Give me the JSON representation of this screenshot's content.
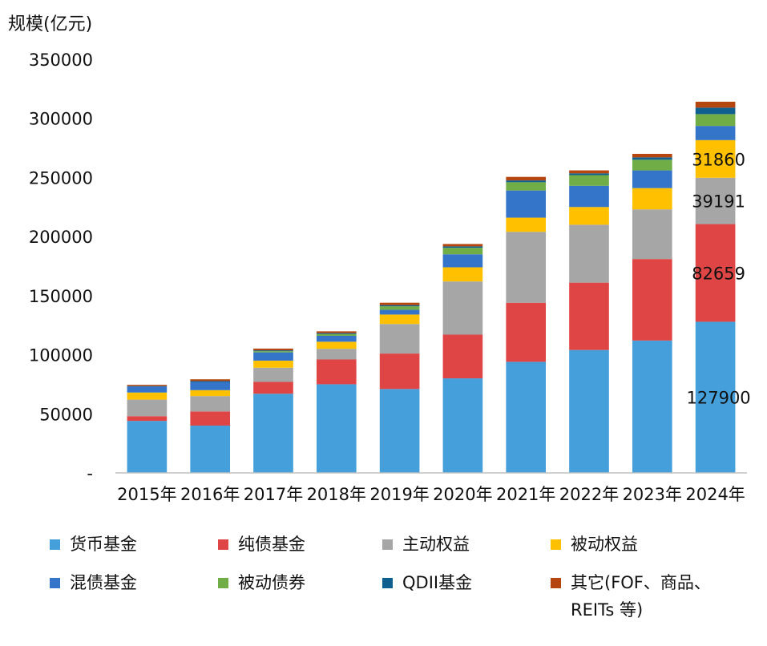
{
  "chart_data": {
    "type": "bar",
    "stacked": true,
    "ylabel": "规模(亿元)",
    "ylim": [
      0,
      350000
    ],
    "yticks": [
      "-",
      "50000",
      "100000",
      "150000",
      "200000",
      "250000",
      "300000",
      "350000"
    ],
    "categories": [
      "2015年",
      "2016年",
      "2017年",
      "2018年",
      "2019年",
      "2020年",
      "2021年",
      "2022年",
      "2023年",
      "2024年"
    ],
    "series": [
      {
        "name": "货币基金",
        "color": "#449FDB",
        "values": [
          44000,
          40000,
          67000,
          75000,
          71000,
          80000,
          94000,
          104000,
          112000,
          127900
        ]
      },
      {
        "name": "纯债基金",
        "color": "#E04545",
        "values": [
          4000,
          12000,
          10000,
          21000,
          30000,
          37000,
          50000,
          57000,
          69000,
          82659
        ]
      },
      {
        "name": "主动权益",
        "color": "#A6A6A6",
        "values": [
          14000,
          13000,
          12000,
          9000,
          25000,
          45000,
          60000,
          49000,
          42000,
          39191
        ]
      },
      {
        "name": "被动权益",
        "color": "#FFC000",
        "values": [
          6000,
          5000,
          6000,
          6000,
          8000,
          12000,
          12000,
          15000,
          18000,
          31860
        ]
      },
      {
        "name": "混债基金",
        "color": "#3575C9",
        "values": [
          5000,
          7000,
          7000,
          5000,
          4000,
          11000,
          23000,
          18000,
          15000,
          12000
        ]
      },
      {
        "name": "被动债券",
        "color": "#70AD47",
        "values": [
          0,
          0,
          1000,
          1500,
          3000,
          5500,
          7000,
          9000,
          9000,
          10000
        ]
      },
      {
        "name": "QDII基金",
        "color": "#0F5F8F",
        "values": [
          500,
          700,
          700,
          800,
          1000,
          1200,
          1500,
          1500,
          2000,
          5500
        ]
      },
      {
        "name": "其它(FOF、商品、\nREITs 等)",
        "color": "#B5460F",
        "values": [
          1000,
          1500,
          1500,
          1500,
          2000,
          2000,
          3000,
          2500,
          3000,
          5000
        ]
      }
    ],
    "data_labels": [
      {
        "category": "2024年",
        "series": "货币基金",
        "text": "127900"
      },
      {
        "category": "2024年",
        "series": "纯债基金",
        "text": "82659"
      },
      {
        "category": "2024年",
        "series": "主动权益",
        "text": "39191"
      },
      {
        "category": "2024年",
        "series": "被动权益",
        "text": "31860"
      }
    ],
    "legend_position": "bottom",
    "grid": false
  }
}
